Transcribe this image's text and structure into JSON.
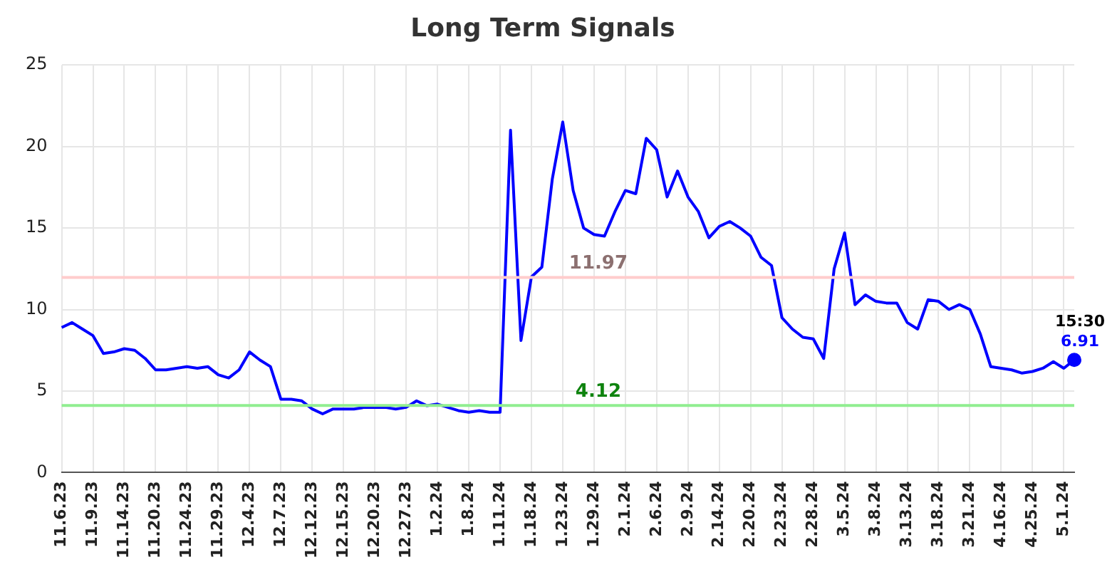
{
  "chart_data": {
    "type": "line",
    "title": "Long Term Signals",
    "categories": [
      "11.6.23",
      null,
      null,
      "11.9.23",
      null,
      null,
      "11.14.23",
      null,
      null,
      "11.20.23",
      null,
      null,
      "11.24.23",
      null,
      null,
      "11.29.23",
      null,
      null,
      "12.4.23",
      null,
      null,
      "12.7.23",
      null,
      null,
      "12.12.23",
      null,
      null,
      "12.15.23",
      null,
      null,
      "12.20.23",
      null,
      null,
      "12.27.23",
      null,
      null,
      "1.2.24",
      null,
      null,
      "1.8.24",
      null,
      null,
      "1.11.24",
      null,
      null,
      "1.18.24",
      null,
      null,
      "1.23.24",
      null,
      null,
      "1.29.24",
      null,
      null,
      "2.1.24",
      null,
      null,
      "2.6.24",
      null,
      null,
      "2.9.24",
      null,
      null,
      "2.14.24",
      null,
      null,
      "2.20.24",
      null,
      null,
      "2.23.24",
      null,
      null,
      "2.28.24",
      null,
      null,
      "3.5.24",
      null,
      null,
      "3.8.24",
      null,
      null,
      "3.13.24",
      null,
      null,
      "3.18.24",
      null,
      null,
      "3.21.24",
      null,
      null,
      "4.16.24",
      null,
      null,
      "4.25.24",
      null,
      null,
      "5.1.24",
      null
    ],
    "series": [
      {
        "color": "#0000ff",
        "values": [
          8.9,
          9.2,
          8.8,
          8.4,
          7.3,
          7.4,
          7.6,
          7.5,
          7.0,
          6.3,
          6.3,
          6.4,
          6.5,
          6.4,
          6.5,
          6.0,
          5.8,
          6.3,
          7.4,
          6.9,
          6.5,
          4.5,
          4.5,
          4.4,
          3.9,
          3.6,
          3.9,
          3.9,
          3.9,
          4.0,
          4.0,
          4.0,
          3.9,
          4.0,
          4.4,
          4.1,
          4.2,
          4.0,
          3.8,
          3.7,
          3.8,
          3.7,
          3.7,
          21.0,
          8.1,
          12.0,
          12.6,
          18.0,
          21.5,
          17.3,
          15.0,
          14.6,
          14.5,
          16.0,
          17.3,
          17.1,
          20.5,
          19.8,
          16.9,
          18.5,
          16.9,
          16.0,
          14.4,
          15.1,
          15.4,
          15.0,
          14.5,
          13.2,
          12.7,
          9.5,
          8.8,
          8.3,
          8.2,
          7.0,
          12.5,
          14.7,
          10.3,
          10.9,
          10.5,
          10.4,
          10.4,
          9.2,
          8.8,
          10.6,
          10.5,
          10.0,
          10.3,
          10.0,
          8.5,
          6.5,
          6.4,
          6.3,
          6.1,
          6.2,
          6.4,
          6.8,
          6.4,
          6.91
        ],
        "value_labels": [
          null,
          null,
          null,
          null,
          null,
          null,
          null,
          null,
          null,
          null,
          null,
          null,
          null,
          null,
          null,
          null,
          null,
          null,
          null,
          null,
          null,
          null,
          null,
          null,
          null,
          null,
          null,
          null,
          null,
          null,
          null,
          null,
          null,
          null,
          null,
          null,
          null,
          null,
          null,
          null,
          null,
          null,
          null,
          null,
          null,
          null,
          null,
          null,
          null,
          null,
          null,
          null,
          null,
          null,
          null,
          null,
          null,
          null,
          null,
          null,
          null,
          null,
          null,
          null,
          null,
          null,
          null,
          null,
          null,
          null,
          null,
          null,
          null,
          null,
          null,
          null,
          null,
          null,
          null,
          null,
          null,
          null,
          null,
          null,
          null,
          null,
          null,
          null,
          null,
          null,
          null,
          null,
          null,
          null,
          null,
          null,
          null,
          "6.91"
        ]
      }
    ],
    "ylim": [
      0,
      25
    ],
    "yticks": [
      0,
      5,
      10,
      15,
      20,
      25
    ],
    "grid": true,
    "legend": false,
    "ref_lines": [
      {
        "axis": "y",
        "value": 11.97,
        "label": "11.97",
        "color": "#ffcccc"
      },
      {
        "axis": "y",
        "value": 4.12,
        "label": "4.12",
        "color": "#90ee90"
      }
    ],
    "annotations": [
      "15:30"
    ]
  }
}
